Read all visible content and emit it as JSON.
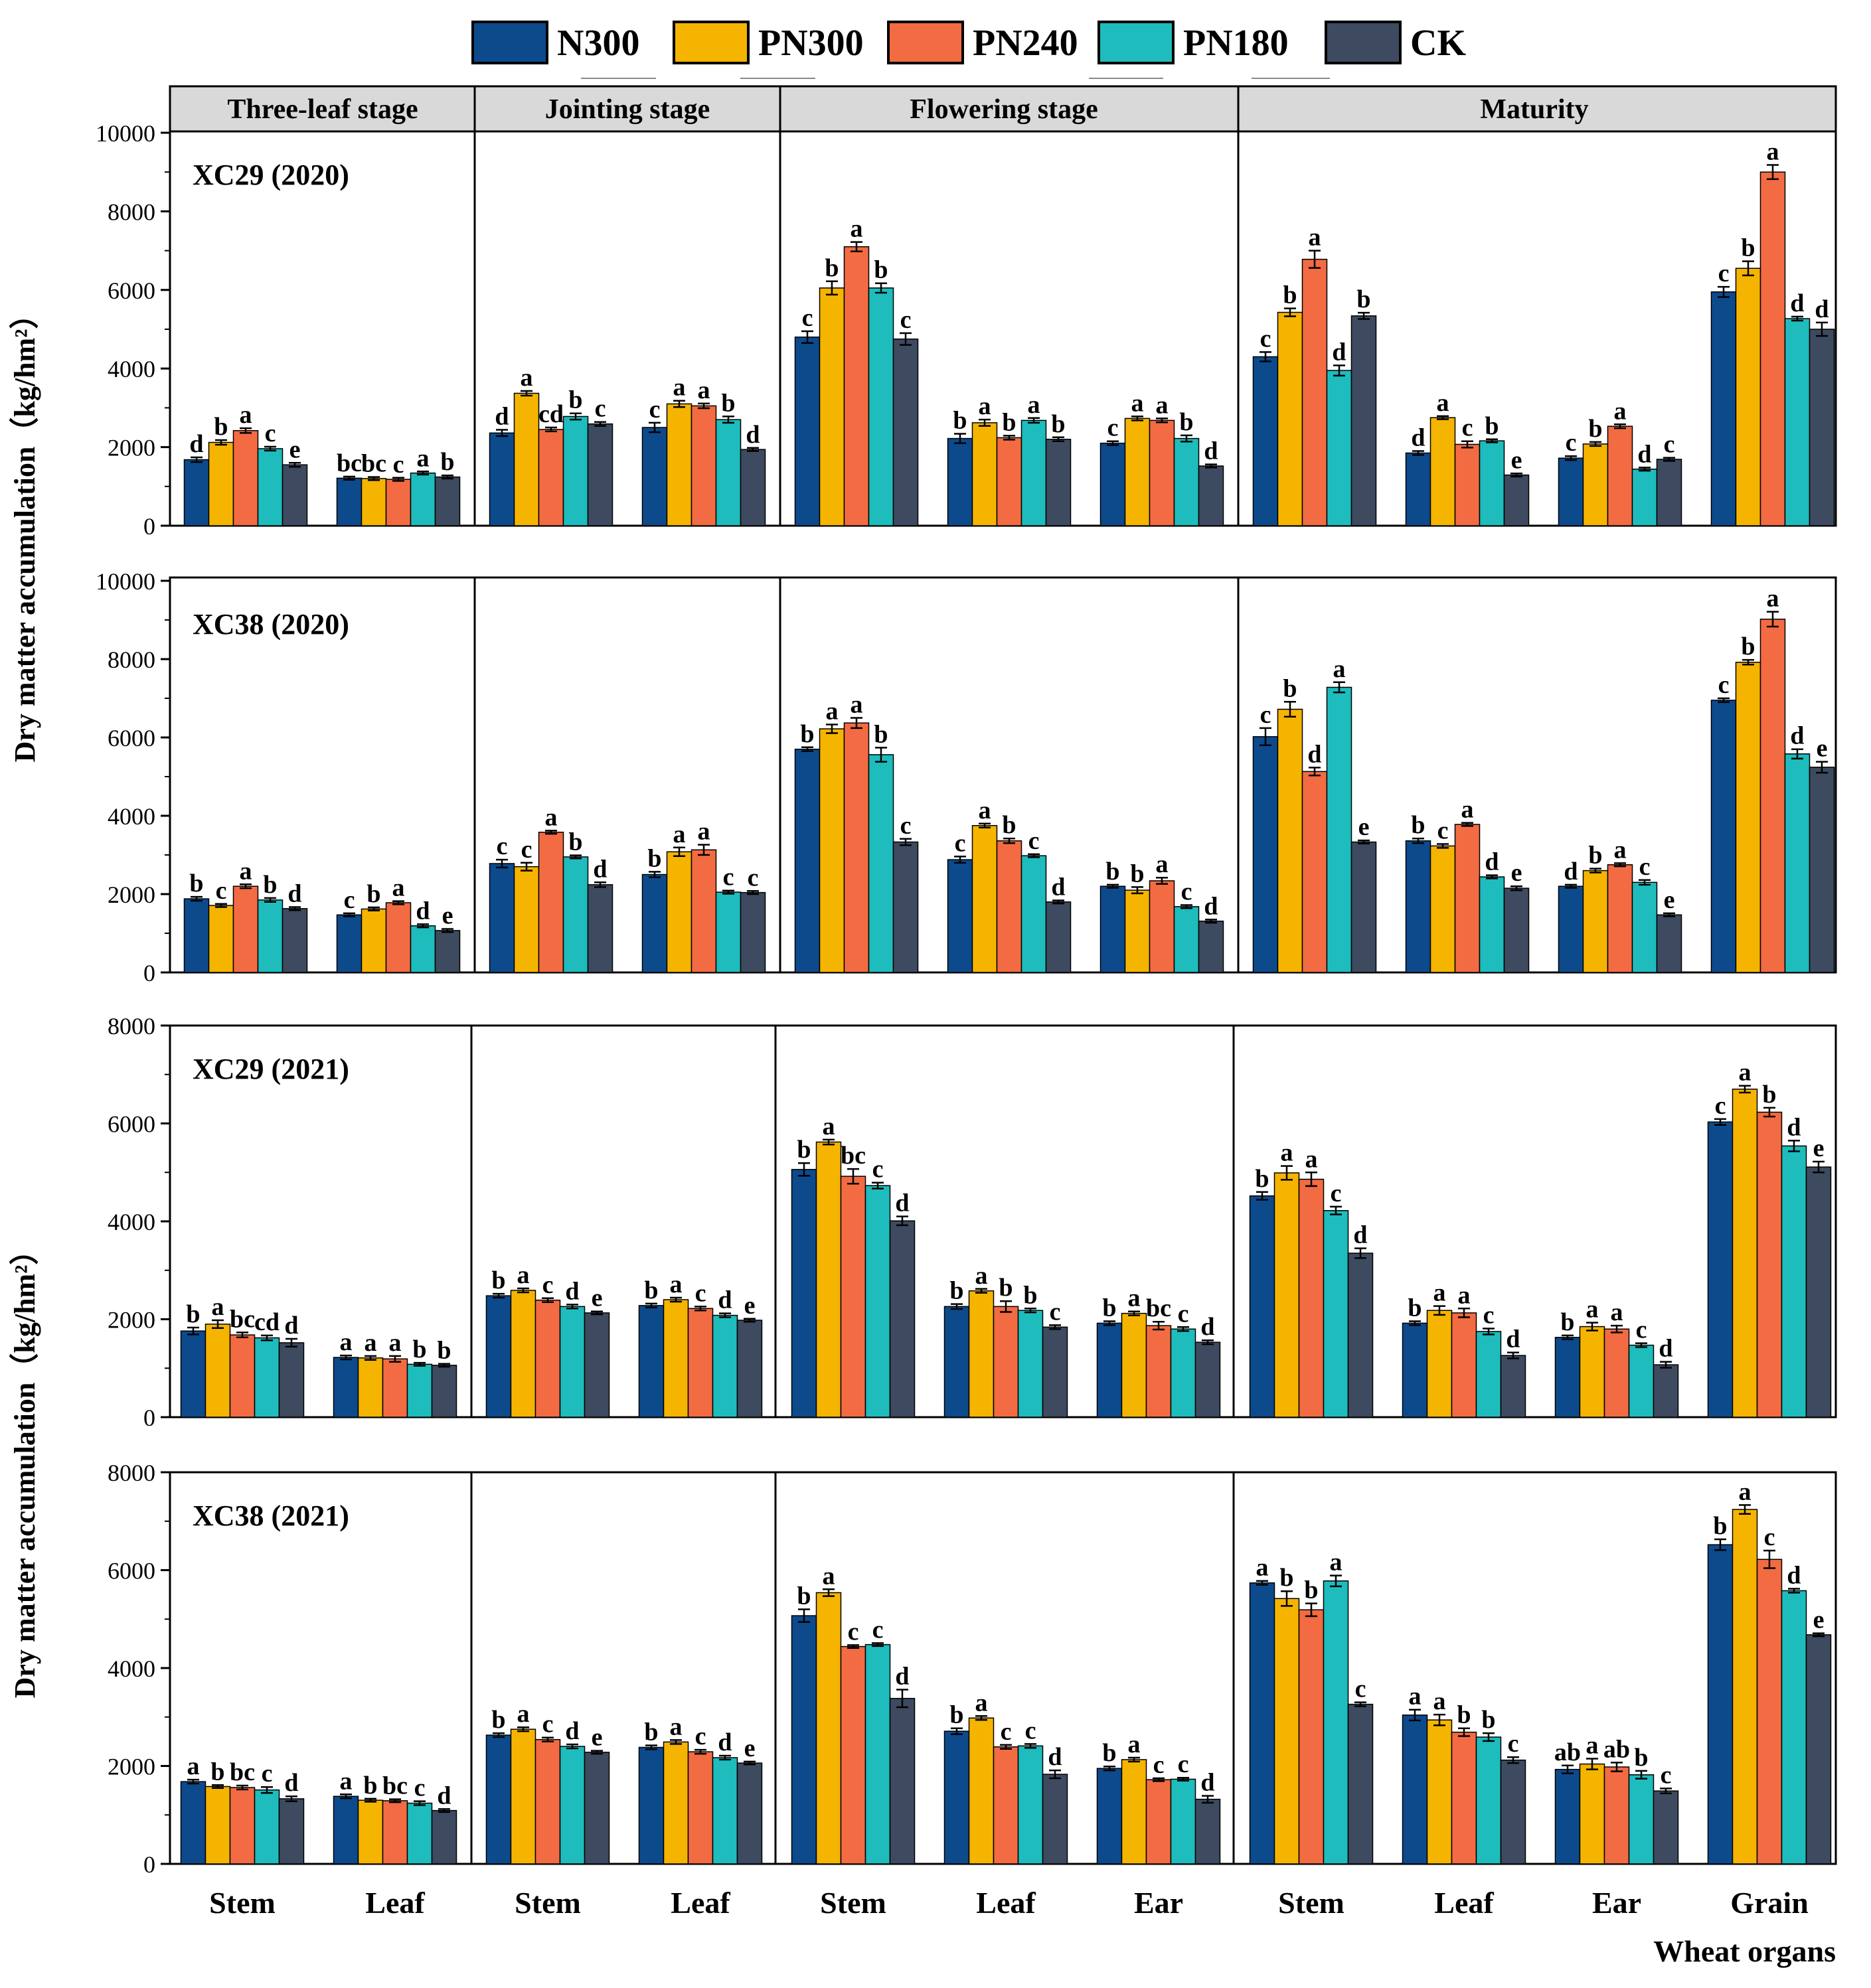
{
  "legend": [
    {
      "name": "N300",
      "color": "#0d4a8c"
    },
    {
      "name": "PN300",
      "color": "#f5b400"
    },
    {
      "name": "PN240",
      "color": "#f26b43"
    },
    {
      "name": "PN180",
      "color": "#1ebcbc"
    },
    {
      "name": "CK",
      "color": "#3d4a5f"
    }
  ],
  "stages": [
    "Three-leaf stage",
    "Jointing  stage",
    "Flowering stage",
    "Maturity"
  ],
  "x_groups": [
    {
      "label": "Stem",
      "stage": 0
    },
    {
      "label": "Leaf",
      "stage": 0
    },
    {
      "label": "Stem",
      "stage": 1
    },
    {
      "label": "Leaf",
      "stage": 1
    },
    {
      "label": "Stem",
      "stage": 2
    },
    {
      "label": "Leaf",
      "stage": 2
    },
    {
      "label": "Ear",
      "stage": 2
    },
    {
      "label": "Stem",
      "stage": 3
    },
    {
      "label": "Leaf",
      "stage": 3
    },
    {
      "label": "Ear",
      "stage": 3
    },
    {
      "label": "Grain",
      "stage": 3
    }
  ],
  "xlabel": "Wheat organs",
  "ylabel": "Dry matter accumulation（kg/hm²）",
  "chart_data": [
    {
      "type": "bar",
      "title": "XC29  (2020)",
      "ylim": [
        0,
        10000
      ],
      "yticks": [
        0,
        2000,
        4000,
        6000,
        8000,
        10000
      ],
      "categories": [
        "Stem",
        "Leaf",
        "Stem",
        "Leaf",
        "Stem",
        "Leaf",
        "Ear",
        "Stem",
        "Leaf",
        "Ear",
        "Grain"
      ],
      "series": [
        {
          "name": "N300",
          "values": [
            1680,
            1210,
            2360,
            2500,
            4800,
            2220,
            2100,
            4300,
            1850,
            1720,
            5950
          ],
          "errors": [
            60,
            40,
            80,
            120,
            150,
            120,
            50,
            120,
            50,
            50,
            130
          ],
          "letters": [
            "d",
            "bc",
            "d",
            "c",
            "c",
            "b",
            "c",
            "c",
            "d",
            "c",
            "c"
          ]
        },
        {
          "name": "PN300",
          "values": [
            2120,
            1200,
            3370,
            3100,
            6050,
            2620,
            2730,
            5430,
            2750,
            2080,
            6550
          ],
          "errors": [
            60,
            40,
            60,
            80,
            170,
            80,
            50,
            100,
            40,
            50,
            180
          ],
          "letters": [
            "b",
            "bc",
            "a",
            "a",
            "b",
            "a",
            "a",
            "b",
            "a",
            "b",
            "b"
          ]
        },
        {
          "name": "PN240",
          "values": [
            2420,
            1180,
            2450,
            3050,
            7100,
            2240,
            2680,
            6780,
            2070,
            2530,
            9000
          ],
          "errors": [
            60,
            40,
            50,
            60,
            120,
            50,
            50,
            220,
            80,
            50,
            180
          ],
          "letters": [
            "a",
            "c",
            "cd",
            "a",
            "a",
            "b",
            "a",
            "a",
            "c",
            "a",
            "a"
          ]
        },
        {
          "name": "PN180",
          "values": [
            1960,
            1340,
            2780,
            2700,
            6050,
            2680,
            2220,
            3950,
            2160,
            1440,
            5270
          ],
          "errors": [
            50,
            40,
            80,
            80,
            120,
            60,
            80,
            130,
            40,
            40,
            50
          ],
          "letters": [
            "c",
            "a",
            "b",
            "b",
            "b",
            "a",
            "b",
            "d",
            "b",
            "d",
            "d"
          ]
        },
        {
          "name": "CK",
          "values": [
            1550,
            1240,
            2590,
            1940,
            4750,
            2200,
            1520,
            5340,
            1290,
            1690,
            5000
          ],
          "errors": [
            50,
            40,
            50,
            40,
            150,
            50,
            40,
            80,
            40,
            40,
            170
          ],
          "letters": [
            "e",
            "b",
            "c",
            "d",
            "c",
            "b",
            "d",
            "b",
            "e",
            "c",
            "d"
          ]
        }
      ]
    },
    {
      "type": "bar",
      "title": "XC38  (2020)",
      "ylim": [
        0,
        10000
      ],
      "yticks": [
        0,
        2000,
        4000,
        6000,
        8000,
        10000
      ],
      "categories": [
        "Stem",
        "Leaf",
        "Stem",
        "Leaf",
        "Stem",
        "Leaf",
        "Ear",
        "Stem",
        "Leaf",
        "Ear",
        "Grain"
      ],
      "series": [
        {
          "name": "N300",
          "values": [
            1880,
            1470,
            2780,
            2500,
            5700,
            2880,
            2200,
            6020,
            3360,
            2200,
            6950
          ],
          "errors": [
            50,
            40,
            100,
            70,
            50,
            80,
            40,
            220,
            60,
            40,
            50
          ],
          "letters": [
            "b",
            "c",
            "c",
            "b",
            "b",
            "c",
            "b",
            "c",
            "b",
            "d",
            "c"
          ]
        },
        {
          "name": "PN300",
          "values": [
            1710,
            1620,
            2700,
            3080,
            6220,
            3750,
            2100,
            6720,
            3230,
            2600,
            7920
          ],
          "errors": [
            40,
            40,
            100,
            110,
            110,
            50,
            80,
            190,
            50,
            50,
            60
          ],
          "letters": [
            "c",
            "b",
            "c",
            "a",
            "a",
            "a",
            "b",
            "b",
            "c",
            "b",
            "b"
          ]
        },
        {
          "name": "PN240",
          "values": [
            2200,
            1780,
            3580,
            3130,
            6370,
            3360,
            2340,
            5130,
            3780,
            2750,
            9020
          ],
          "errors": [
            50,
            40,
            40,
            130,
            130,
            60,
            80,
            100,
            40,
            40,
            190
          ],
          "letters": [
            "a",
            "a",
            "a",
            "a",
            "a",
            "b",
            "a",
            "d",
            "a",
            "a",
            "a"
          ]
        },
        {
          "name": "PN180",
          "values": [
            1850,
            1190,
            2950,
            2050,
            5560,
            2980,
            1680,
            7280,
            2440,
            2300,
            5580
          ],
          "errors": [
            50,
            40,
            40,
            40,
            180,
            40,
            40,
            130,
            40,
            60,
            120
          ],
          "letters": [
            "b",
            "d",
            "b",
            "c",
            "b",
            "c",
            "c",
            "a",
            "d",
            "c",
            "d"
          ]
        },
        {
          "name": "CK",
          "values": [
            1630,
            1070,
            2240,
            2040,
            3330,
            1800,
            1310,
            3330,
            2150,
            1470,
            5240
          ],
          "errors": [
            40,
            40,
            60,
            40,
            80,
            40,
            40,
            40,
            50,
            40,
            140
          ],
          "letters": [
            "d",
            "e",
            "d",
            "c",
            "c",
            "d",
            "d",
            "e",
            "e",
            "e",
            "e"
          ]
        }
      ]
    },
    {
      "type": "bar",
      "title": "XC29  (2021)",
      "ylim": [
        0,
        8000
      ],
      "yticks": [
        0,
        2000,
        4000,
        6000,
        8000
      ],
      "categories": [
        "Stem",
        "Leaf",
        "Stem",
        "Leaf",
        "Stem",
        "Leaf",
        "Ear",
        "Stem",
        "Leaf",
        "Ear",
        "Grain"
      ],
      "series": [
        {
          "name": "N300",
          "values": [
            1760,
            1220,
            2480,
            2280,
            5060,
            2260,
            1920,
            4520,
            1920,
            1630,
            6030
          ],
          "errors": [
            70,
            40,
            40,
            40,
            130,
            50,
            40,
            80,
            40,
            40,
            60
          ],
          "letters": [
            "b",
            "a",
            "b",
            "b",
            "b",
            "b",
            "b",
            "b",
            "b",
            "b",
            "c"
          ]
        },
        {
          "name": "PN300",
          "values": [
            1900,
            1210,
            2590,
            2400,
            5620,
            2580,
            2120,
            4990,
            2180,
            1850,
            6700
          ],
          "errors": [
            80,
            40,
            40,
            40,
            50,
            40,
            40,
            140,
            90,
            80,
            70
          ],
          "letters": [
            "a",
            "a",
            "a",
            "a",
            "a",
            "a",
            "a",
            "a",
            "a",
            "a",
            "a"
          ]
        },
        {
          "name": "PN240",
          "values": [
            1680,
            1190,
            2390,
            2220,
            4920,
            2260,
            1870,
            4860,
            2130,
            1800,
            6230
          ],
          "errors": [
            50,
            60,
            40,
            40,
            150,
            110,
            80,
            140,
            90,
            70,
            90
          ],
          "letters": [
            "bc",
            "a",
            "c",
            "c",
            "bc",
            "b",
            "bc",
            "a",
            "a",
            "a",
            "b"
          ]
        },
        {
          "name": "PN180",
          "values": [
            1620,
            1080,
            2260,
            2080,
            4730,
            2180,
            1800,
            4220,
            1750,
            1470,
            5540
          ],
          "errors": [
            50,
            30,
            40,
            40,
            60,
            40,
            40,
            80,
            60,
            40,
            110
          ],
          "letters": [
            "cd",
            "b",
            "d",
            "d",
            "c",
            "b",
            "c",
            "c",
            "c",
            "c",
            "d"
          ]
        },
        {
          "name": "CK",
          "values": [
            1520,
            1060,
            2130,
            1980,
            4010,
            1840,
            1530,
            3350,
            1260,
            1070,
            5110
          ],
          "errors": [
            80,
            30,
            30,
            30,
            90,
            40,
            40,
            100,
            60,
            60,
            110
          ],
          "letters": [
            "d",
            "b",
            "e",
            "e",
            "d",
            "c",
            "d",
            "d",
            "d",
            "d",
            "e"
          ]
        }
      ]
    },
    {
      "type": "bar",
      "title": "XC38  (2021)",
      "ylim": [
        0,
        8000
      ],
      "yticks": [
        0,
        2000,
        4000,
        6000,
        8000
      ],
      "categories": [
        "Stem",
        "Leaf",
        "Stem",
        "Leaf",
        "Stem",
        "Leaf",
        "Ear",
        "Stem",
        "Leaf",
        "Ear",
        "Grain"
      ],
      "series": [
        {
          "name": "N300",
          "values": [
            1680,
            1380,
            2630,
            2380,
            5070,
            2710,
            1950,
            5740,
            3040,
            1930,
            6520
          ],
          "errors": [
            40,
            40,
            40,
            40,
            130,
            60,
            40,
            40,
            110,
            80,
            110
          ],
          "letters": [
            "a",
            "a",
            "b",
            "b",
            "b",
            "b",
            "b",
            "a",
            "a",
            "ab",
            "b"
          ]
        },
        {
          "name": "PN300",
          "values": [
            1580,
            1300,
            2750,
            2490,
            5540,
            2980,
            2130,
            5420,
            2940,
            2040,
            7240
          ],
          "errors": [
            30,
            30,
            40,
            40,
            70,
            40,
            40,
            150,
            110,
            110,
            90
          ],
          "letters": [
            "b",
            "b",
            "a",
            "a",
            "a",
            "a",
            "a",
            "b",
            "a",
            "a",
            "a"
          ]
        },
        {
          "name": "PN240",
          "values": [
            1560,
            1290,
            2540,
            2290,
            4440,
            2390,
            1720,
            5190,
            2690,
            1980,
            6220
          ],
          "errors": [
            40,
            30,
            40,
            40,
            30,
            40,
            30,
            130,
            80,
            90,
            180
          ],
          "letters": [
            "bc",
            "bc",
            "c",
            "c",
            "c",
            "c",
            "c",
            "b",
            "b",
            "ab",
            "c"
          ]
        },
        {
          "name": "PN180",
          "values": [
            1510,
            1240,
            2400,
            2170,
            4480,
            2410,
            1730,
            5780,
            2590,
            1820,
            5580
          ],
          "errors": [
            60,
            40,
            40,
            40,
            30,
            40,
            30,
            110,
            80,
            80,
            40
          ],
          "letters": [
            "c",
            "c",
            "d",
            "d",
            "c",
            "c",
            "c",
            "a",
            "b",
            "b",
            "d"
          ]
        },
        {
          "name": "CK",
          "values": [
            1330,
            1090,
            2280,
            2060,
            3380,
            1830,
            1320,
            3260,
            2120,
            1490,
            4680
          ],
          "errors": [
            50,
            30,
            30,
            30,
            180,
            80,
            70,
            40,
            60,
            50,
            30
          ],
          "letters": [
            "d",
            "d",
            "e",
            "e",
            "d",
            "d",
            "d",
            "c",
            "c",
            "c",
            "e"
          ]
        }
      ]
    }
  ]
}
